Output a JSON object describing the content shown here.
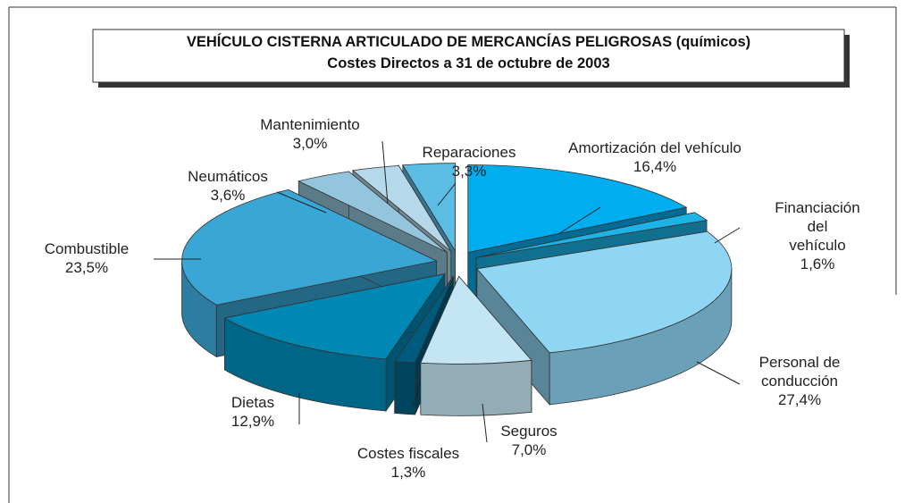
{
  "chart_data": {
    "type": "pie3d",
    "title": "VEHÍCULO CISTERNA ARTICULADO DE MERCANCÍAS PELIGROSAS (químicos)",
    "subtitle": "Costes Directos a 31 de octubre de 2003",
    "categories": [
      "Amortización del vehículo",
      "Financiación del\nvehículo",
      "Personal de\nconducción",
      "Seguros",
      "Costes fiscales",
      "Dietas",
      "Combustible",
      "Neumáticos",
      "Mantenimiento",
      "Reparaciones"
    ],
    "values": [
      16.4,
      1.6,
      27.4,
      7.0,
      1.3,
      12.9,
      23.5,
      3.6,
      3.0,
      3.3
    ],
    "value_labels": [
      "16,4%",
      "1,6%",
      "27,4%",
      "7,0%",
      "1,3%",
      "12,9%",
      "23,5%",
      "3,6%",
      "3,0%",
      "3,3%"
    ],
    "colors": [
      "#00aeef",
      "#1cb4e6",
      "#8fd6f5",
      "#c4e6f4",
      "#005a7d",
      "#0088b5",
      "#3aa6d6",
      "#93c6dc",
      "#b5d9ea",
      "#5bbde4"
    ]
  }
}
